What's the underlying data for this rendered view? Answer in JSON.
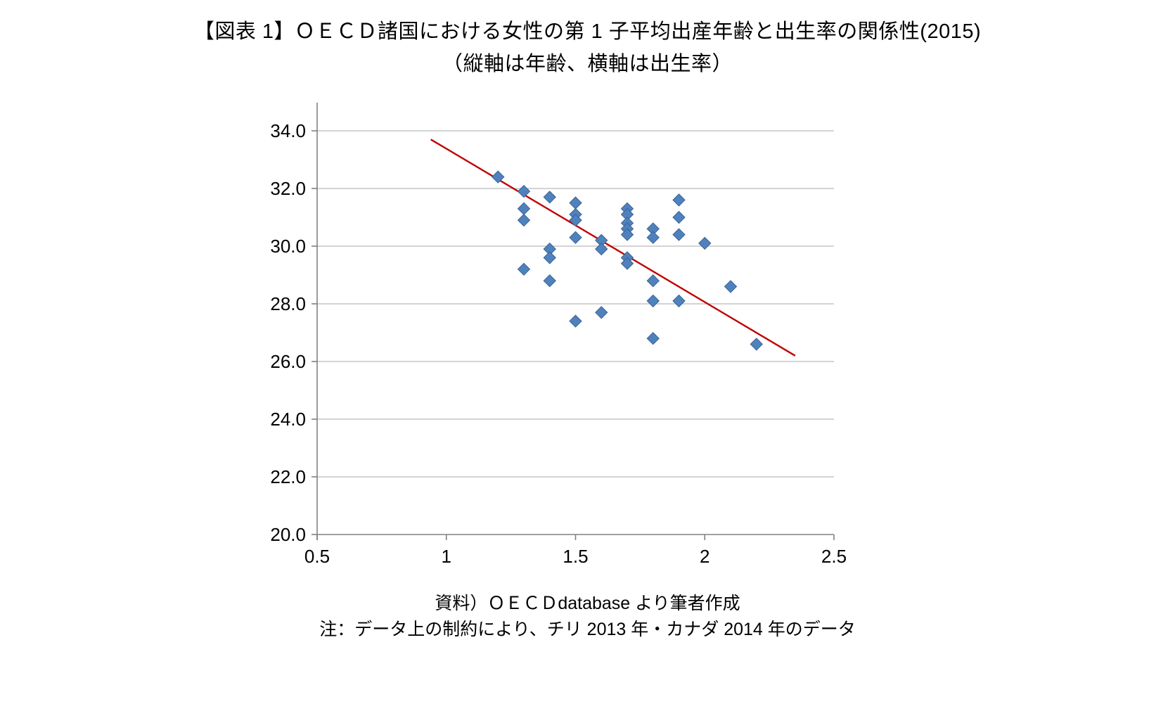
{
  "title": {
    "line1": "【図表 1】ＯＥＣＤ諸国における女性の第 1 子平均出産年齢と出生率の関係性(2015)",
    "line2": "（縦軸は年齢、横軸は出生率）"
  },
  "footer": {
    "source": "資料）ＯＥＣＤdatabase より筆者作成",
    "note": "注：データ上の制約により、チリ 2013 年・カナダ 2014 年のデータ"
  },
  "chart_data": {
    "type": "scatter",
    "title": "OECD諸国における女性の第1子平均出産年齢と出生率の関係性(2015)",
    "xlabel": "出生率",
    "ylabel": "年齢",
    "xlim": [
      0.5,
      2.5
    ],
    "ylim": [
      20.0,
      34.0
    ],
    "grid": true,
    "x_ticks": [
      {
        "v": 0.5,
        "label": "0.5"
      },
      {
        "v": 1.0,
        "label": "1"
      },
      {
        "v": 1.5,
        "label": "1.5"
      },
      {
        "v": 2.0,
        "label": "2"
      },
      {
        "v": 2.5,
        "label": "2.5"
      }
    ],
    "y_ticks": [
      {
        "v": 20.0,
        "label": "20.0"
      },
      {
        "v": 22.0,
        "label": "22.0"
      },
      {
        "v": 24.0,
        "label": "24.0"
      },
      {
        "v": 26.0,
        "label": "26.0"
      },
      {
        "v": 28.0,
        "label": "28.0"
      },
      {
        "v": 30.0,
        "label": "30.0"
      },
      {
        "v": 32.0,
        "label": "32.0"
      },
      {
        "v": 34.0,
        "label": "34.0"
      }
    ],
    "points": [
      [
        1.2,
        32.4
      ],
      [
        1.3,
        31.9
      ],
      [
        1.3,
        31.3
      ],
      [
        1.3,
        30.9
      ],
      [
        1.3,
        29.2
      ],
      [
        1.4,
        31.7
      ],
      [
        1.4,
        29.9
      ],
      [
        1.4,
        29.6
      ],
      [
        1.4,
        28.8
      ],
      [
        1.5,
        31.5
      ],
      [
        1.5,
        31.1
      ],
      [
        1.5,
        30.9
      ],
      [
        1.5,
        30.3
      ],
      [
        1.5,
        27.4
      ],
      [
        1.6,
        30.2
      ],
      [
        1.6,
        29.9
      ],
      [
        1.6,
        27.7
      ],
      [
        1.7,
        31.3
      ],
      [
        1.7,
        31.1
      ],
      [
        1.7,
        30.8
      ],
      [
        1.7,
        30.6
      ],
      [
        1.7,
        30.4
      ],
      [
        1.7,
        29.6
      ],
      [
        1.7,
        29.4
      ],
      [
        1.8,
        30.6
      ],
      [
        1.8,
        30.3
      ],
      [
        1.8,
        28.8
      ],
      [
        1.8,
        28.1
      ],
      [
        1.8,
        26.8
      ],
      [
        1.9,
        31.6
      ],
      [
        1.9,
        31.0
      ],
      [
        1.9,
        30.4
      ],
      [
        1.9,
        28.1
      ],
      [
        2.0,
        30.1
      ],
      [
        2.1,
        28.6
      ],
      [
        2.2,
        26.6
      ]
    ],
    "trendline": {
      "x": [
        0.94,
        2.35
      ],
      "y": [
        33.7,
        26.2
      ]
    },
    "marker_color": "#4f81bd",
    "marker_stroke": "#3a6496",
    "trend_color": "#c00000",
    "grid_color": "#c6c6c6",
    "axis_color": "#808080",
    "legend": "none"
  }
}
